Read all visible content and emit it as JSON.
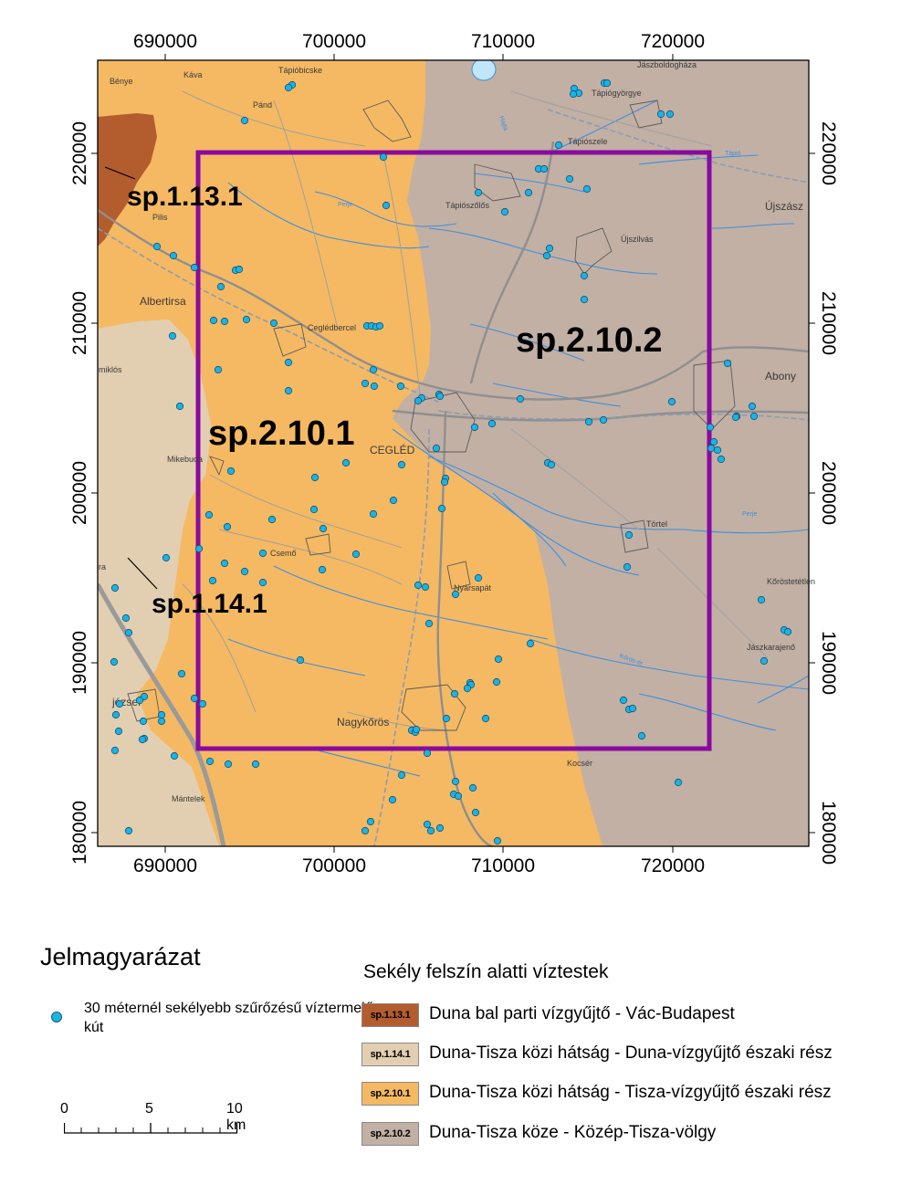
{
  "map": {
    "x_ticks": [
      "690000",
      "700000",
      "710000",
      "720000"
    ],
    "y_ticks": [
      "220000",
      "210000",
      "200000",
      "190000",
      "180000"
    ],
    "zone_labels": {
      "sp_1_13_1": "sp.1.13.1",
      "sp_1_14_1": "sp.1.14.1",
      "sp_2_10_1": "sp.2.10.1",
      "sp_2_10_2": "sp.2.10.2"
    },
    "places": {
      "kava": "Káva",
      "benye": "Bénye",
      "tapiobicske": "Tápióbicske",
      "pand": "Pánd",
      "jaszboldoghaza": "Jászboldogháza",
      "tapiogyorgye": "Tápiógyörgye",
      "tapioszele": "Tápiószele",
      "tapioszolos": "Tápiószőlős",
      "ujszilvas": "Újszilvás",
      "ujszasz": "Újszász",
      "pilis": "Pilis",
      "albertirsa": "Albertirsa",
      "ceglédbercel": "Ceglédbercel",
      "abony": "Abony",
      "miklos": "miklós",
      "mikebuda": "Mikebuda",
      "cegled": "CEGLÉD",
      "tortel": "Törtel",
      "csemo": "Csemő",
      "nyarsapat": "Nyársapát",
      "korostetetlen": "Kőröstetétlen",
      "jaszkarajeno": "Jászkarajenő",
      "jozsef": "józsef",
      "nagykoros": "Nagykőrös",
      "kocser": "Kocsér",
      "mantelek": "Mántelek",
      "ra": "ra"
    },
    "river_labels": {
      "perje": "Perje",
      "hajta": "Hajta",
      "tapio": "Tápió",
      "korosér": "Kőrös-ér"
    },
    "colors": {
      "sp_1_13_1": "#b35c2e",
      "sp_1_14_1": "#e2cfb1",
      "sp_2_10_1": "#f5b963",
      "sp_2_10_2": "#c2b0a5",
      "study_area": "#8a0aa0",
      "well": "#17b4e6",
      "river": "#3d8fdc"
    }
  },
  "legend": {
    "title": "Jelmagyarázat",
    "well_label": "30 méternél sekélyebb szűrőzésű víztermelő kút",
    "water_bodies_title": "Sekély felszín alatti víztestek",
    "items": [
      {
        "code": "sp.1.13.1",
        "label": "Duna bal parti vízgyűjtő - Vác-Budapest"
      },
      {
        "code": "sp.1.14.1",
        "label": "Duna-Tisza közi hátság - Duna-vízgyűjtő északi rész"
      },
      {
        "code": "sp.2.10.1",
        "label": "Duna-Tisza közi hátság - Tisza-vízgyűjtő északi rész"
      },
      {
        "code": "sp.2.10.2",
        "label": "Duna-Tisza köze - Közép-Tisza-völgy"
      }
    ]
  },
  "scale_bar": {
    "labels": [
      "0",
      "5",
      "10 km"
    ]
  }
}
